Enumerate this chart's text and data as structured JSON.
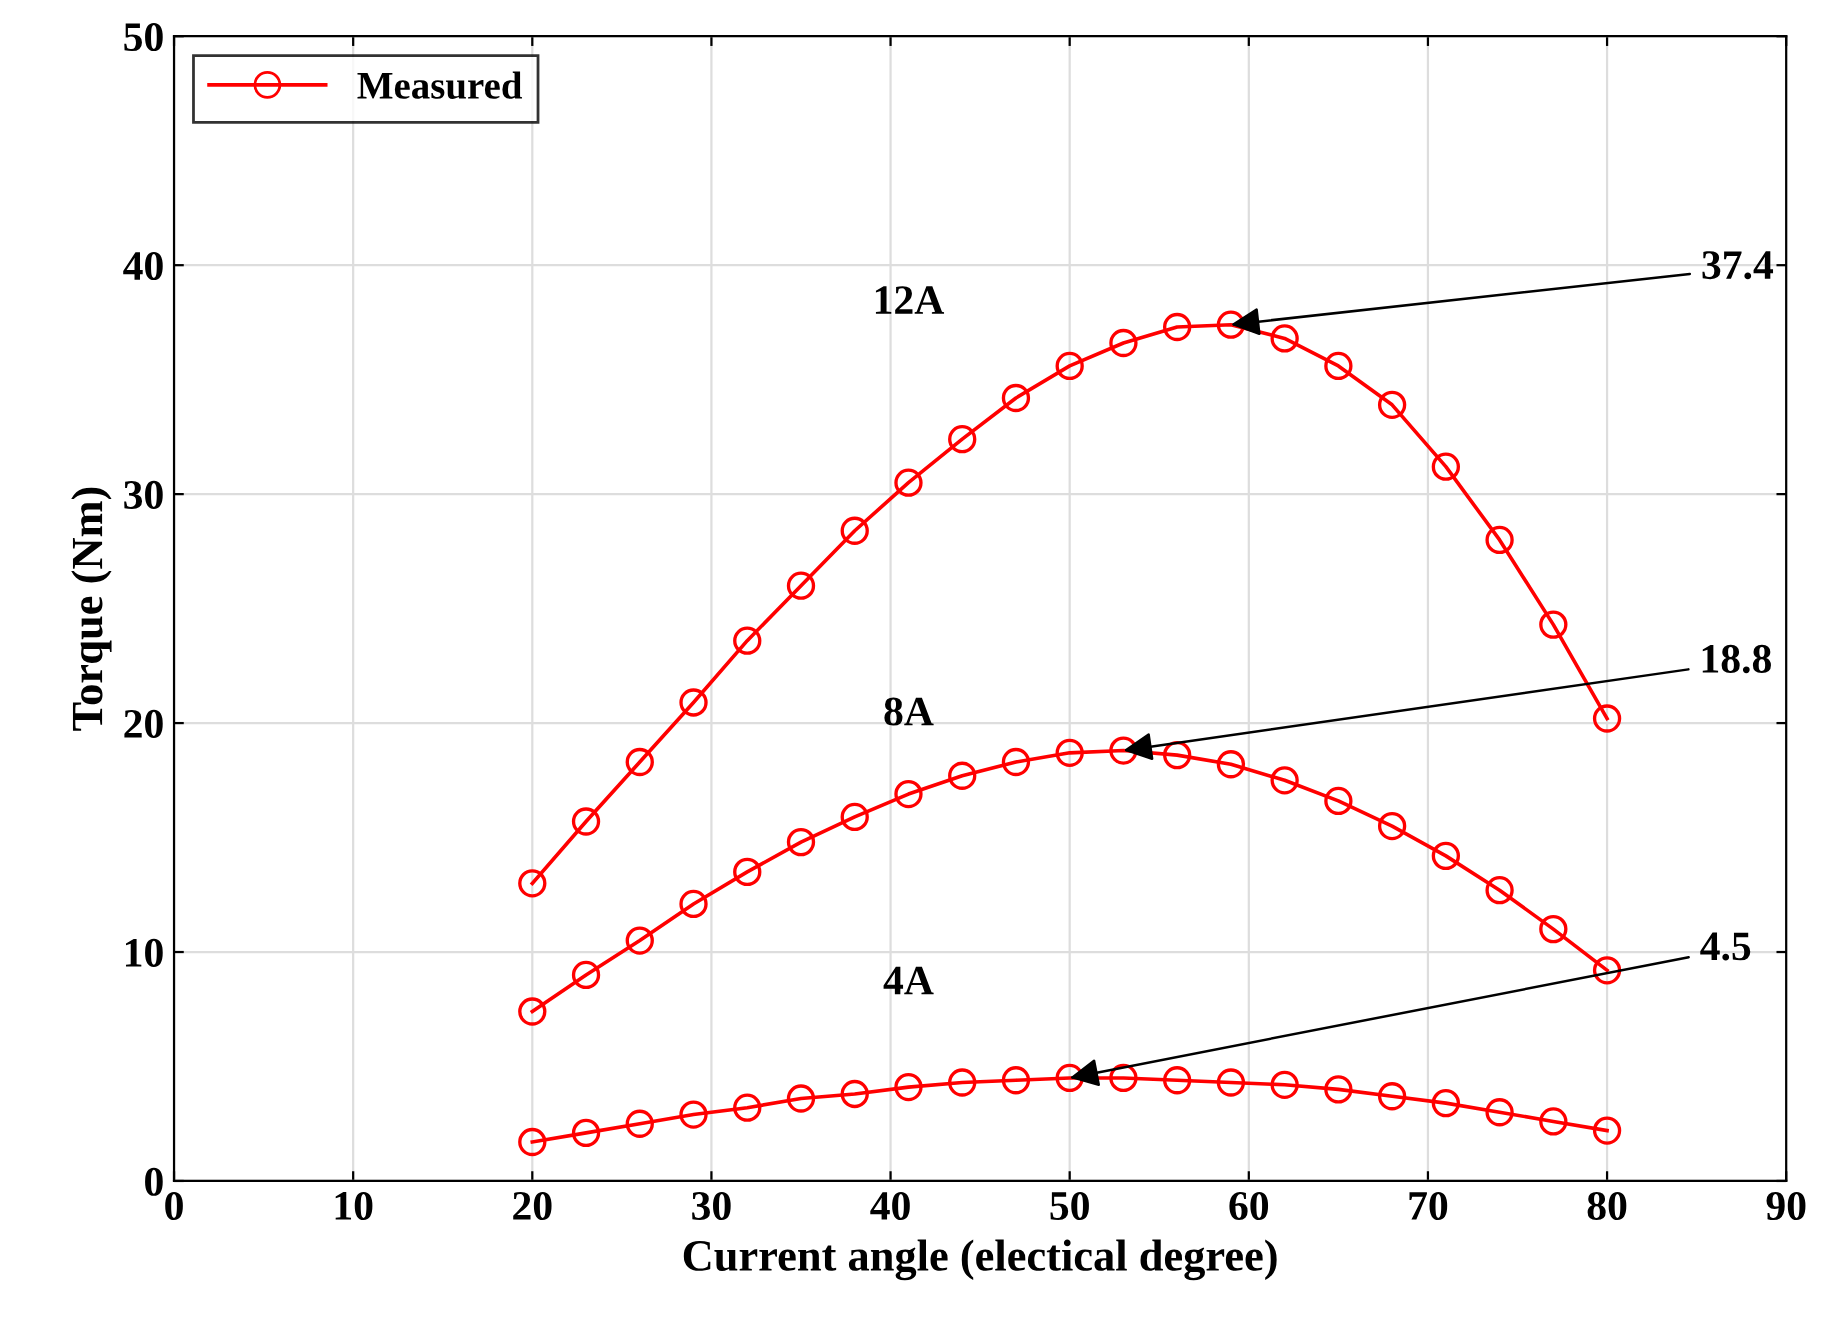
{
  "chart_data": {
    "type": "line",
    "xlabel": "Current angle (electical degree)",
    "ylabel": "Torque (Nm)",
    "legend": "top left",
    "grid": true,
    "marker": "circle",
    "line_style": "solid",
    "x": [
      20,
      23,
      26,
      29,
      32,
      35,
      38,
      41,
      44,
      47,
      50,
      53,
      56,
      59,
      62,
      65,
      68,
      71,
      74,
      77,
      80
    ],
    "series": [
      {
        "name": "Measured",
        "color": "#ff0000",
        "values": [
          13.0,
          15.7,
          18.3,
          20.9,
          23.6,
          26.0,
          28.4,
          30.5,
          32.4,
          34.2,
          35.6,
          36.6,
          37.3,
          37.4,
          36.8,
          35.6,
          33.9,
          31.2,
          28.0,
          24.3,
          20.2
        ]
      },
      {
        "color": "#ff0000",
        "values": [
          7.4,
          9.0,
          10.5,
          12.1,
          13.5,
          14.8,
          15.9,
          16.9,
          17.7,
          18.3,
          18.7,
          18.8,
          18.6,
          18.2,
          17.5,
          16.6,
          15.5,
          14.2,
          12.7,
          11.0,
          9.2
        ]
      },
      {
        "color": "#ff0000",
        "values": [
          1.7,
          2.1,
          2.5,
          2.9,
          3.2,
          3.6,
          3.8,
          4.1,
          4.3,
          4.4,
          4.5,
          4.5,
          4.4,
          4.3,
          4.2,
          4.0,
          3.7,
          3.4,
          3.0,
          2.6,
          2.2
        ]
      }
    ],
    "annotations": [
      "12A",
      "8A",
      "4A",
      {
        "text": "37.4",
        "x": 59,
        "y": 37.4
      },
      {
        "text": "18.8",
        "x": 53,
        "y": 18.8
      },
      {
        "text": "4.5",
        "x": 50,
        "y": 4.5
      }
    ],
    "xlim": [
      0,
      90
    ],
    "xticks": [
      0,
      10,
      20,
      30,
      40,
      50,
      60,
      70,
      80,
      90
    ],
    "ylim": [
      0,
      50
    ],
    "yticks": [
      0,
      10,
      20,
      30,
      40,
      50
    ]
  }
}
